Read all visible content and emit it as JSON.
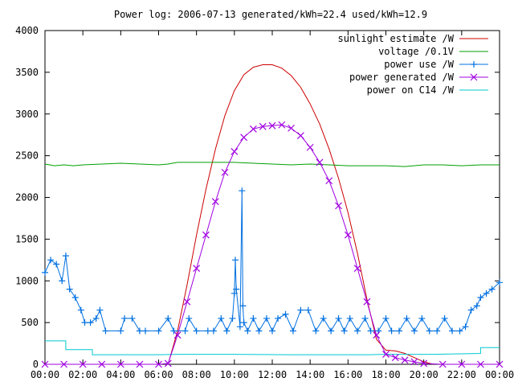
{
  "chart_data": {
    "type": "line",
    "title": "Power log: 2006-07-13 generated/kWh=22.4 used/kWh=12.9",
    "xlabel": "",
    "ylabel": "",
    "xlim": [
      0,
      24
    ],
    "ylim": [
      0,
      4000
    ],
    "grid": false,
    "legend_position": "top-right",
    "x_ticks": [
      "00:00",
      "02:00",
      "04:00",
      "06:00",
      "08:00",
      "10:00",
      "12:00",
      "14:00",
      "16:00",
      "18:00",
      "20:00",
      "22:00",
      "00:00"
    ],
    "y_ticks": [
      "0",
      "500",
      "1000",
      "1500",
      "2000",
      "2500",
      "3000",
      "3500",
      "4000"
    ],
    "series": [
      {
        "name": "sunlight estimate /W",
        "color": "#cc0000",
        "style": "line",
        "x": [
          6.5,
          7,
          7.5,
          8,
          8.5,
          9,
          9.5,
          10,
          10.5,
          11,
          11.5,
          12,
          12.5,
          13,
          13.5,
          14,
          14.5,
          15,
          15.5,
          16,
          16.5,
          17,
          17.5,
          18,
          18.5,
          19,
          19.5,
          20,
          20.5
        ],
        "values": [
          0,
          400,
          950,
          1550,
          2100,
          2580,
          2980,
          3280,
          3470,
          3560,
          3590,
          3590,
          3550,
          3460,
          3320,
          3120,
          2880,
          2580,
          2230,
          1820,
          1330,
          780,
          300,
          170,
          160,
          130,
          80,
          30,
          0
        ]
      },
      {
        "name": "voltage /0.1V",
        "color": "#00a000",
        "style": "line",
        "x": [
          0,
          0.5,
          1,
          1.5,
          2,
          3,
          4,
          5,
          6,
          6.5,
          7,
          8,
          9,
          10,
          11,
          12,
          13,
          14,
          15,
          16,
          17,
          18,
          19,
          20,
          21,
          22,
          23,
          24
        ],
        "values": [
          2400,
          2380,
          2390,
          2380,
          2390,
          2400,
          2410,
          2400,
          2390,
          2400,
          2420,
          2420,
          2420,
          2420,
          2410,
          2400,
          2390,
          2400,
          2390,
          2380,
          2380,
          2380,
          2370,
          2390,
          2390,
          2380,
          2390,
          2390
        ]
      },
      {
        "name": "power use /W",
        "color": "#0070e0",
        "style": "line-plus",
        "x": [
          0,
          0.3,
          0.6,
          0.9,
          1.1,
          1.3,
          1.6,
          1.9,
          2.1,
          2.4,
          2.7,
          2.9,
          3.2,
          4.0,
          4.2,
          4.6,
          5.0,
          5.3,
          6.0,
          6.5,
          6.8,
          7.4,
          7.6,
          8.0,
          8.6,
          8.9,
          9.3,
          9.6,
          9.9,
          10.0,
          10.05,
          10.1,
          10.3,
          10.4,
          10.45,
          10.5,
          10.7,
          11.0,
          11.3,
          11.7,
          12.0,
          12.3,
          12.7,
          13.1,
          13.5,
          13.9,
          14.3,
          14.7,
          15.1,
          15.5,
          15.8,
          16.1,
          16.5,
          16.9,
          17.2,
          17.6,
          18.0,
          18.3,
          18.7,
          19.1,
          19.5,
          19.9,
          20.3,
          20.7,
          21.1,
          21.5,
          21.9,
          22.2,
          22.5,
          22.8,
          23.0,
          23.3,
          23.6,
          24.0
        ],
        "values": [
          1100,
          1250,
          1200,
          1000,
          1300,
          900,
          800,
          650,
          500,
          500,
          550,
          650,
          400,
          400,
          550,
          550,
          400,
          400,
          400,
          550,
          400,
          400,
          550,
          400,
          400,
          400,
          550,
          400,
          550,
          850,
          1250,
          900,
          450,
          2080,
          700,
          500,
          400,
          550,
          400,
          550,
          400,
          550,
          600,
          400,
          650,
          650,
          400,
          550,
          400,
          550,
          400,
          550,
          400,
          550,
          400,
          400,
          550,
          400,
          400,
          550,
          400,
          550,
          400,
          400,
          550,
          400,
          400,
          450,
          650,
          700,
          800,
          850,
          900,
          980
        ]
      },
      {
        "name": "power generated /W",
        "color": "#a000e0",
        "style": "line-cross",
        "x": [
          0,
          1,
          2,
          3,
          4,
          5,
          6,
          6.5,
          7,
          7.5,
          8,
          8.5,
          9,
          9.5,
          10,
          10.5,
          11,
          11.5,
          12,
          12.5,
          13,
          13.5,
          14,
          14.5,
          15,
          15.5,
          16,
          16.5,
          17,
          17.5,
          18,
          18.5,
          19,
          19.5,
          20,
          21,
          22,
          23,
          24
        ],
        "values": [
          0,
          0,
          0,
          0,
          0,
          0,
          0,
          10,
          350,
          750,
          1150,
          1550,
          1950,
          2300,
          2550,
          2720,
          2820,
          2850,
          2860,
          2870,
          2830,
          2740,
          2600,
          2420,
          2200,
          1900,
          1550,
          1150,
          750,
          350,
          120,
          80,
          50,
          30,
          10,
          0,
          0,
          0,
          0
        ]
      },
      {
        "name": "power on C14 /W",
        "color": "#00c8d0",
        "style": "line",
        "x": [
          0,
          1.1,
          1.1,
          2.5,
          2.5,
          6,
          7,
          10,
          13,
          17,
          18,
          20.5,
          20.5,
          23,
          23,
          24
        ],
        "values": [
          280,
          280,
          175,
          175,
          115,
          115,
          120,
          120,
          115,
          115,
          120,
          120,
          120,
          130,
          200,
          200
        ]
      }
    ]
  }
}
